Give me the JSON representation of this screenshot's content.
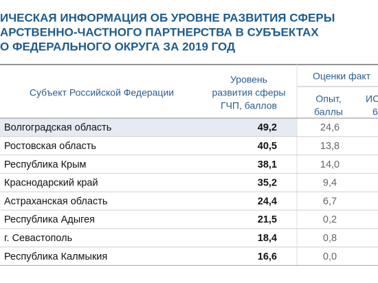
{
  "header": {
    "title": [
      "ИЧЕСКАЯ ИНФОРМАЦИЯ ОБ УРОВНЕ РАЗВИТИЯ СФЕРЫ",
      "АРСТВЕННО-ЧАСТНОГО ПАРТНЕРСТВА В СУБЪЕКТАХ",
      "О ФЕДЕРАЛЬНОГО ОКРУГА ЗА 2019 ГОД"
    ]
  },
  "table": {
    "columns": {
      "subject": "Субъект Российской Федерации",
      "level": [
        "Уровень",
        "развития сферы",
        "ГЧП, баллов"
      ],
      "group": "Оценки факт",
      "experience": [
        "Опыт,",
        "баллы"
      ],
      "is": [
        "ИС",
        "6"
      ]
    },
    "rows": [
      [
        "Волгоградская область",
        "49,2",
        "24,6"
      ],
      [
        "Ростовская область",
        "40,5",
        "13,8"
      ],
      [
        "Республика Крым",
        "38,1",
        "14,0"
      ],
      [
        "Краснодарский край",
        "35,2",
        "9,4"
      ],
      [
        "Астраханская область",
        "24,4",
        "6,7"
      ],
      [
        "Республика Адыгея",
        "21,5",
        "0,2"
      ],
      [
        "г. Севастополь",
        "18,4",
        "0,8"
      ],
      [
        "Республика Калмыкия",
        "16,6",
        "0,0"
      ]
    ]
  }
}
